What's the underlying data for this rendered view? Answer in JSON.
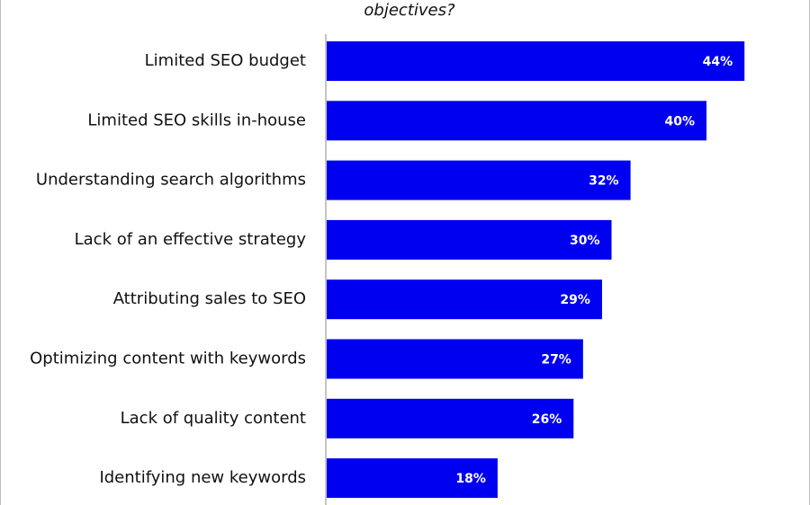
{
  "chart_data": {
    "type": "bar",
    "orientation": "horizontal",
    "title": "objectives?",
    "categories": [
      "Limited SEO budget",
      "Limited SEO skills in-house",
      "Understanding search algorithms",
      "Lack of an effective strategy",
      "Attributing sales to SEO",
      "Optimizing content with keywords",
      "Lack of quality content",
      "Identifying new keywords"
    ],
    "values": [
      44,
      40,
      32,
      30,
      29,
      27,
      26,
      18
    ],
    "value_labels": [
      "44%",
      "40%",
      "32%",
      "30%",
      "29%",
      "27%",
      "26%",
      "18%"
    ],
    "color": "#0000f0"
  }
}
